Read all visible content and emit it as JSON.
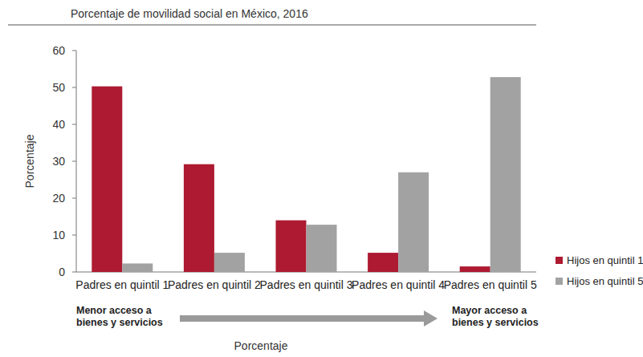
{
  "chart_data": {
    "type": "bar",
    "title": "Porcentaje de movilidad social en México, 2016",
    "y_label": "Porcentaje",
    "x_label": "Porcentaje",
    "categories": [
      "Padres en quintil 1",
      "Padres en quintil 2",
      "Padres en quintil 3",
      "Padres en quintil 4",
      "Padres en quintil 5"
    ],
    "series": [
      {
        "name": "Hijos en quintil 1",
        "color": "#ad1a31",
        "values": [
          50.3,
          29.2,
          14.0,
          5.2,
          1.5
        ]
      },
      {
        "name": "Hijos en quintil 5",
        "color": "#a2a2a2",
        "values": [
          2.3,
          5.2,
          12.8,
          27.0,
          52.8
        ]
      }
    ],
    "ylim": [
      0,
      60
    ],
    "yticks": [
      0,
      10,
      20,
      30,
      40,
      50,
      60
    ],
    "grid": false,
    "legend": "right",
    "annotations": [
      [
        "Menor acceso a",
        "bienes y servicios"
      ],
      [
        "Mayor acceso a",
        "bienes y servicios"
      ]
    ]
  }
}
